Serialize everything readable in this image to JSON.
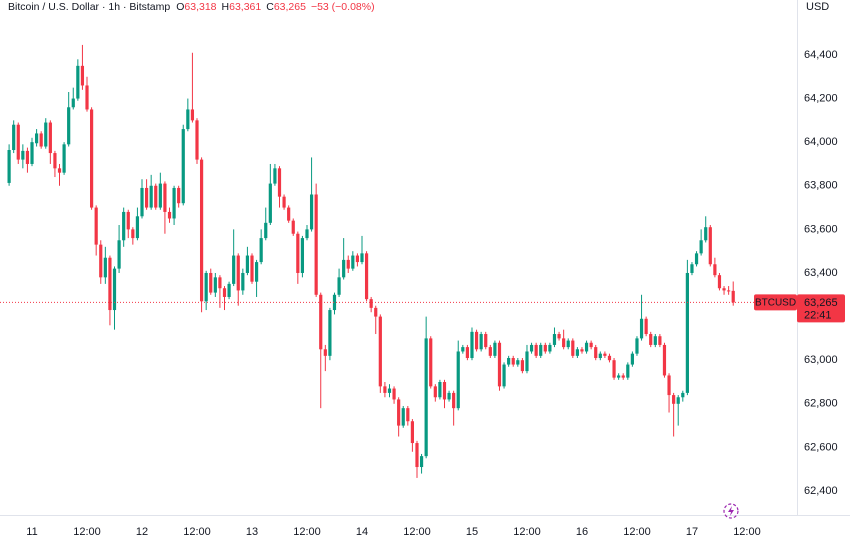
{
  "chart_data": {
    "type": "candlestick",
    "title": "Bitcoin / U.S. Dollar · 1h · Bitstamp",
    "legend": [
      {
        "label": "O",
        "value": "63,318"
      },
      {
        "label": "H",
        "value": "63,361"
      },
      {
        "label": "C",
        "value": "63,265"
      }
    ],
    "change": "−53 (−0.08%)",
    "currency": "USD",
    "price_label": {
      "symbol": "BTCUSD",
      "price": "63,265",
      "countdown": "22:41"
    },
    "up_color": "#089981",
    "down_color": "#f23645",
    "grid": false,
    "ylim": [
      62290,
      64652
    ],
    "yticks": [
      {
        "value": 62400,
        "label": "62,400"
      },
      {
        "value": 62600,
        "label": "62,600"
      },
      {
        "value": 62800,
        "label": "62,800"
      },
      {
        "value": 63000,
        "label": "63,000"
      },
      {
        "value": 63200,
        "label": "63,200"
      },
      {
        "value": 63400,
        "label": "63,400"
      },
      {
        "value": 63600,
        "label": "63,600"
      },
      {
        "value": 63800,
        "label": "63,800"
      },
      {
        "value": 64000,
        "label": "64,000"
      },
      {
        "value": 64200,
        "label": "64,200"
      },
      {
        "value": 64400,
        "label": "64,400"
      }
    ],
    "categories": [
      null,
      null,
      null,
      null,
      null,
      "11",
      null,
      null,
      null,
      null,
      null,
      null,
      null,
      null,
      null,
      null,
      null,
      "12:00",
      null,
      null,
      null,
      null,
      null,
      null,
      null,
      null,
      null,
      null,
      null,
      "12",
      null,
      null,
      null,
      null,
      null,
      null,
      null,
      null,
      null,
      null,
      null,
      "12:00",
      null,
      null,
      null,
      null,
      null,
      null,
      null,
      null,
      null,
      null,
      null,
      "13",
      null,
      null,
      null,
      null,
      null,
      null,
      null,
      null,
      null,
      null,
      null,
      "12:00",
      null,
      null,
      null,
      null,
      null,
      null,
      null,
      null,
      null,
      null,
      null,
      "14",
      null,
      null,
      null,
      null,
      null,
      null,
      null,
      null,
      null,
      null,
      null,
      "12:00",
      null,
      null,
      null,
      null,
      null,
      null,
      null,
      null,
      null,
      null,
      null,
      "15",
      null,
      null,
      null,
      null,
      null,
      null,
      null,
      null,
      null,
      null,
      null,
      "12:00",
      null,
      null,
      null,
      null,
      null,
      null,
      null,
      null,
      null,
      null,
      null,
      "16",
      null,
      null,
      null,
      null,
      null,
      null,
      null,
      null,
      null,
      null,
      null,
      "12:00",
      null,
      null,
      null,
      null,
      null,
      null,
      null,
      null,
      null,
      null,
      null,
      "17",
      null,
      null,
      null,
      null,
      null,
      null,
      null,
      null,
      null,
      null,
      null,
      "12:00",
      null,
      null,
      null,
      null,
      null,
      null,
      null,
      null,
      null,
      null
    ],
    "ohlc": [
      [
        63813,
        63990,
        63800,
        63964
      ],
      [
        63964,
        64100,
        63950,
        64080
      ],
      [
        64080,
        64090,
        63900,
        63920
      ],
      [
        63920,
        63990,
        63880,
        63960
      ],
      [
        63960,
        63975,
        63860,
        63900
      ],
      [
        63900,
        64020,
        63890,
        64000
      ],
      [
        63995,
        64060,
        63980,
        64040
      ],
      [
        64040,
        64050,
        63970,
        63980
      ],
      [
        63980,
        64110,
        63970,
        64090
      ],
      [
        64090,
        64100,
        63900,
        63950
      ],
      [
        63950,
        63960,
        63840,
        63880
      ],
      [
        63880,
        63900,
        63800,
        63860
      ],
      [
        63860,
        64000,
        63850,
        63990
      ],
      [
        63990,
        64230,
        63980,
        64160
      ],
      [
        64160,
        64250,
        64150,
        64200
      ],
      [
        64200,
        64380,
        64190,
        64350
      ],
      [
        64350,
        64446,
        64240,
        64260
      ],
      [
        64260,
        64300,
        64140,
        64150
      ],
      [
        64150,
        64160,
        63690,
        63700
      ],
      [
        63700,
        63710,
        63480,
        63530
      ],
      [
        63530,
        63550,
        63350,
        63380
      ],
      [
        63380,
        63520,
        63350,
        63470
      ],
      [
        63470,
        63480,
        63160,
        63230
      ],
      [
        63230,
        63430,
        63140,
        63420
      ],
      [
        63420,
        63620,
        63400,
        63550
      ],
      [
        63550,
        63700,
        63520,
        63680
      ],
      [
        63680,
        63690,
        63560,
        63600
      ],
      [
        63600,
        63610,
        63530,
        63560
      ],
      [
        63560,
        63700,
        63550,
        63660
      ],
      [
        63660,
        63830,
        63650,
        63790
      ],
      [
        63790,
        63830,
        63690,
        63700
      ],
      [
        63700,
        63850,
        63690,
        63800
      ],
      [
        63800,
        63810,
        63690,
        63700
      ],
      [
        63700,
        63860,
        63690,
        63810
      ],
      [
        63810,
        63820,
        63580,
        63680
      ],
      [
        63680,
        63700,
        63630,
        63650
      ],
      [
        63650,
        63800,
        63620,
        63790
      ],
      [
        63790,
        63800,
        63700,
        63720
      ],
      [
        63720,
        64080,
        63710,
        64060
      ],
      [
        64060,
        64200,
        64050,
        64150
      ],
      [
        64150,
        64410,
        64090,
        64100
      ],
      [
        64100,
        64110,
        63900,
        63920
      ],
      [
        63920,
        63930,
        63220,
        63270
      ],
      [
        63270,
        63410,
        63230,
        63400
      ],
      [
        63400,
        63420,
        63300,
        63310
      ],
      [
        63310,
        63400,
        63290,
        63380
      ],
      [
        63380,
        63390,
        63240,
        63330
      ],
      [
        63330,
        63340,
        63230,
        63290
      ],
      [
        63290,
        63360,
        63280,
        63350
      ],
      [
        63350,
        63600,
        63340,
        63480
      ],
      [
        63480,
        63490,
        63250,
        63320
      ],
      [
        63320,
        63420,
        63300,
        63400
      ],
      [
        63400,
        63520,
        63390,
        63480
      ],
      [
        63480,
        63490,
        63350,
        63360
      ],
      [
        63360,
        63460,
        63290,
        63450
      ],
      [
        63450,
        63600,
        63440,
        63560
      ],
      [
        63560,
        63700,
        63550,
        63630
      ],
      [
        63630,
        63900,
        63620,
        63810
      ],
      [
        63810,
        63900,
        63800,
        63880
      ],
      [
        63880,
        63890,
        63700,
        63750
      ],
      [
        63750,
        63760,
        63690,
        63700
      ],
      [
        63700,
        63710,
        63630,
        63640
      ],
      [
        63640,
        63650,
        63570,
        63580
      ],
      [
        63580,
        63590,
        63350,
        63400
      ],
      [
        63400,
        63570,
        63380,
        63560
      ],
      [
        63560,
        63620,
        63550,
        63600
      ],
      [
        63600,
        63930,
        63590,
        63760
      ],
      [
        63760,
        63810,
        63290,
        63300
      ],
      [
        63300,
        63310,
        62780,
        63050
      ],
      [
        63050,
        63070,
        62950,
        63020
      ],
      [
        63020,
        63240,
        63000,
        63230
      ],
      [
        63230,
        63310,
        63210,
        63300
      ],
      [
        63300,
        63420,
        63290,
        63380
      ],
      [
        63380,
        63560,
        63370,
        63460
      ],
      [
        63460,
        63480,
        63400,
        63420
      ],
      [
        63420,
        63500,
        63410,
        63480
      ],
      [
        63480,
        63490,
        63430,
        63450
      ],
      [
        63450,
        63570,
        63440,
        63490
      ],
      [
        63490,
        63500,
        63270,
        63280
      ],
      [
        63280,
        63290,
        63220,
        63240
      ],
      [
        63240,
        63250,
        63120,
        63200
      ],
      [
        63200,
        63210,
        62850,
        62880
      ],
      [
        62880,
        62900,
        62830,
        62850
      ],
      [
        62850,
        62890,
        62830,
        62870
      ],
      [
        62870,
        62880,
        62800,
        62820
      ],
      [
        62820,
        62830,
        62650,
        62700
      ],
      [
        62700,
        62790,
        62690,
        62780
      ],
      [
        62780,
        62790,
        62700,
        62720
      ],
      [
        62720,
        62730,
        62580,
        62620
      ],
      [
        62620,
        62630,
        62460,
        62510
      ],
      [
        62510,
        62570,
        62480,
        62560
      ],
      [
        62560,
        63200,
        62550,
        63100
      ],
      [
        63100,
        63110,
        62870,
        62880
      ],
      [
        62880,
        62890,
        62810,
        62830
      ],
      [
        62830,
        62910,
        62820,
        62900
      ],
      [
        62900,
        62910,
        62780,
        62820
      ],
      [
        62820,
        62860,
        62810,
        62850
      ],
      [
        62850,
        62860,
        62700,
        62780
      ],
      [
        62780,
        63090,
        62770,
        63040
      ],
      [
        63040,
        63070,
        63030,
        63060
      ],
      [
        63060,
        63070,
        63000,
        63010
      ],
      [
        63010,
        63150,
        63000,
        63130
      ],
      [
        63130,
        63140,
        63040,
        63050
      ],
      [
        63050,
        63130,
        63040,
        63120
      ],
      [
        63120,
        63130,
        63050,
        63060
      ],
      [
        63060,
        63070,
        63010,
        63020
      ],
      [
        63020,
        63090,
        63010,
        63080
      ],
      [
        63080,
        63090,
        62860,
        62880
      ],
      [
        62880,
        62990,
        62870,
        62980
      ],
      [
        62980,
        63020,
        62970,
        63010
      ],
      [
        63010,
        63020,
        62970,
        62980
      ],
      [
        62980,
        63010,
        62970,
        63000
      ],
      [
        63000,
        63010,
        62940,
        62950
      ],
      [
        62950,
        63070,
        62940,
        63040
      ],
      [
        63040,
        63080,
        63030,
        63070
      ],
      [
        63070,
        63080,
        63010,
        63020
      ],
      [
        63020,
        63080,
        63010,
        63070
      ],
      [
        63070,
        63080,
        63030,
        63040
      ],
      [
        63040,
        63080,
        63030,
        63070
      ],
      [
        63070,
        63150,
        63060,
        63120
      ],
      [
        63120,
        63130,
        63090,
        63100
      ],
      [
        63100,
        63140,
        63050,
        63060
      ],
      [
        63060,
        63100,
        63050,
        63090
      ],
      [
        63090,
        63100,
        63010,
        63020
      ],
      [
        63020,
        63060,
        63010,
        63050
      ],
      [
        63050,
        63060,
        63030,
        63040
      ],
      [
        63040,
        63090,
        63030,
        63080
      ],
      [
        63080,
        63090,
        63050,
        63060
      ],
      [
        63060,
        63070,
        63000,
        63010
      ],
      [
        63010,
        63040,
        63000,
        63030
      ],
      [
        63030,
        63040,
        63010,
        63020
      ],
      [
        63020,
        63030,
        62990,
        63000
      ],
      [
        63000,
        63010,
        62910,
        62920
      ],
      [
        62920,
        62940,
        62910,
        62930
      ],
      [
        62930,
        62940,
        62910,
        62920
      ],
      [
        62920,
        62990,
        62910,
        62980
      ],
      [
        62980,
        63040,
        62970,
        63030
      ],
      [
        63030,
        63110,
        63020,
        63100
      ],
      [
        63100,
        63300,
        63090,
        63190
      ],
      [
        63190,
        63200,
        63110,
        63120
      ],
      [
        63120,
        63130,
        63060,
        63070
      ],
      [
        63070,
        63120,
        63060,
        63110
      ],
      [
        63110,
        63120,
        63060,
        63070
      ],
      [
        63070,
        63080,
        62920,
        62930
      ],
      [
        62930,
        62940,
        62760,
        62840
      ],
      [
        62840,
        62850,
        62650,
        62800
      ],
      [
        62800,
        62840,
        62700,
        62830
      ],
      [
        62830,
        62860,
        62810,
        62850
      ],
      [
        62850,
        63460,
        62840,
        63400
      ],
      [
        63400,
        63450,
        63390,
        63440
      ],
      [
        63440,
        63500,
        63430,
        63490
      ],
      [
        63490,
        63600,
        63480,
        63550
      ],
      [
        63550,
        63660,
        63540,
        63610
      ],
      [
        63610,
        63620,
        63430,
        63440
      ],
      [
        63440,
        63470,
        63380,
        63390
      ],
      [
        63390,
        63400,
        63320,
        63330
      ],
      [
        63330,
        63340,
        63300,
        63320
      ],
      [
        63320,
        63340,
        63300,
        63318
      ],
      [
        63318,
        63361,
        63250,
        63265
      ],
      null,
      null,
      null,
      null,
      null,
      null,
      null,
      null,
      null,
      null,
      null,
      null,
      null
    ]
  }
}
